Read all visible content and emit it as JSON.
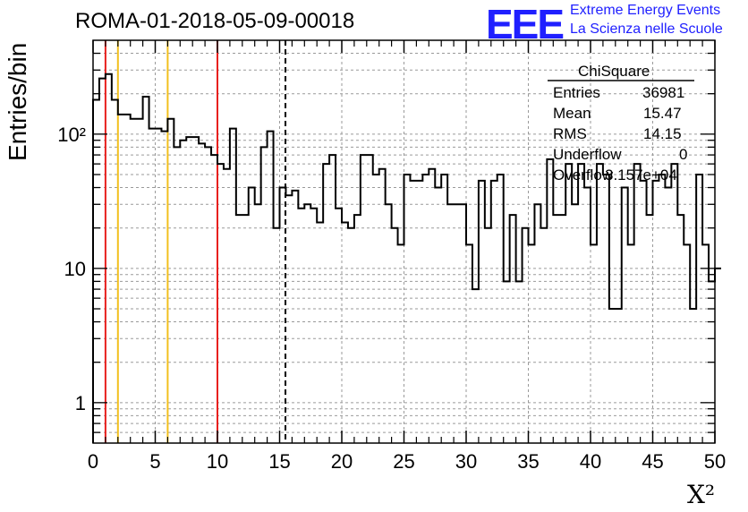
{
  "header": {
    "title": "ROMA-01-2018-05-09-00018",
    "logo_text": "EEE",
    "logo_line1": "Extreme Energy Events",
    "logo_line2": "La Scienza nelle Scuole"
  },
  "axes": {
    "ylabel": "Entries/bin",
    "xlabel": "X²"
  },
  "stats": {
    "title": "ChiSquare",
    "rows": [
      {
        "label": "Entries",
        "value": "36981"
      },
      {
        "label": "Mean",
        "value": "15.47"
      },
      {
        "label": "RMS",
        "value": "14.15"
      },
      {
        "label": "Underflow",
        "value": "0"
      },
      {
        "label": "Overflow",
        "value": "3.157e+04"
      }
    ]
  },
  "colors": {
    "red_line": "#e8201e",
    "yellow_line": "#f2c01e",
    "histogram": "#000000",
    "logo": "#1f1fff"
  },
  "chart_data": {
    "type": "histogram",
    "title": "ROMA-01-2018-05-09-00018",
    "xlabel": "X²",
    "ylabel": "Entries/bin",
    "xlim": [
      0,
      50
    ],
    "ylim": [
      0.5,
      500
    ],
    "yscale": "log",
    "grid": true,
    "bin_width": 0.5,
    "x_ticks": [
      0,
      5,
      10,
      15,
      20,
      25,
      30,
      35,
      40,
      45,
      50
    ],
    "y_ticks": [
      {
        "value": 1,
        "label": "1"
      },
      {
        "value": 10,
        "label": "10"
      },
      {
        "value": 100,
        "label": "10²"
      }
    ],
    "values": [
      180,
      260,
      280,
      180,
      140,
      140,
      130,
      130,
      190,
      110,
      110,
      105,
      130,
      80,
      90,
      95,
      95,
      85,
      80,
      70,
      60,
      55,
      110,
      25,
      25,
      40,
      30,
      80,
      105,
      20,
      40,
      35,
      38,
      28,
      30,
      28,
      22,
      60,
      70,
      28,
      22,
      20,
      25,
      70,
      70,
      50,
      55,
      30,
      20,
      15,
      50,
      45,
      45,
      50,
      55,
      40,
      50,
      30,
      30,
      30,
      15,
      7,
      45,
      20,
      45,
      50,
      8,
      25,
      8,
      20,
      15,
      30,
      20,
      65,
      25,
      25,
      60,
      30,
      60,
      40,
      15,
      60,
      50,
      5,
      5,
      40,
      15,
      60,
      45,
      25,
      45,
      50,
      40,
      60,
      25,
      15,
      5,
      50,
      15,
      8,
      10
    ],
    "vlines": [
      {
        "x": 1,
        "color": "red",
        "style": "solid"
      },
      {
        "x": 2,
        "color": "yellow",
        "style": "solid"
      },
      {
        "x": 6,
        "color": "yellow",
        "style": "solid"
      },
      {
        "x": 10,
        "color": "red",
        "style": "solid"
      },
      {
        "x": 15.47,
        "color": "black",
        "style": "dashed"
      }
    ]
  }
}
